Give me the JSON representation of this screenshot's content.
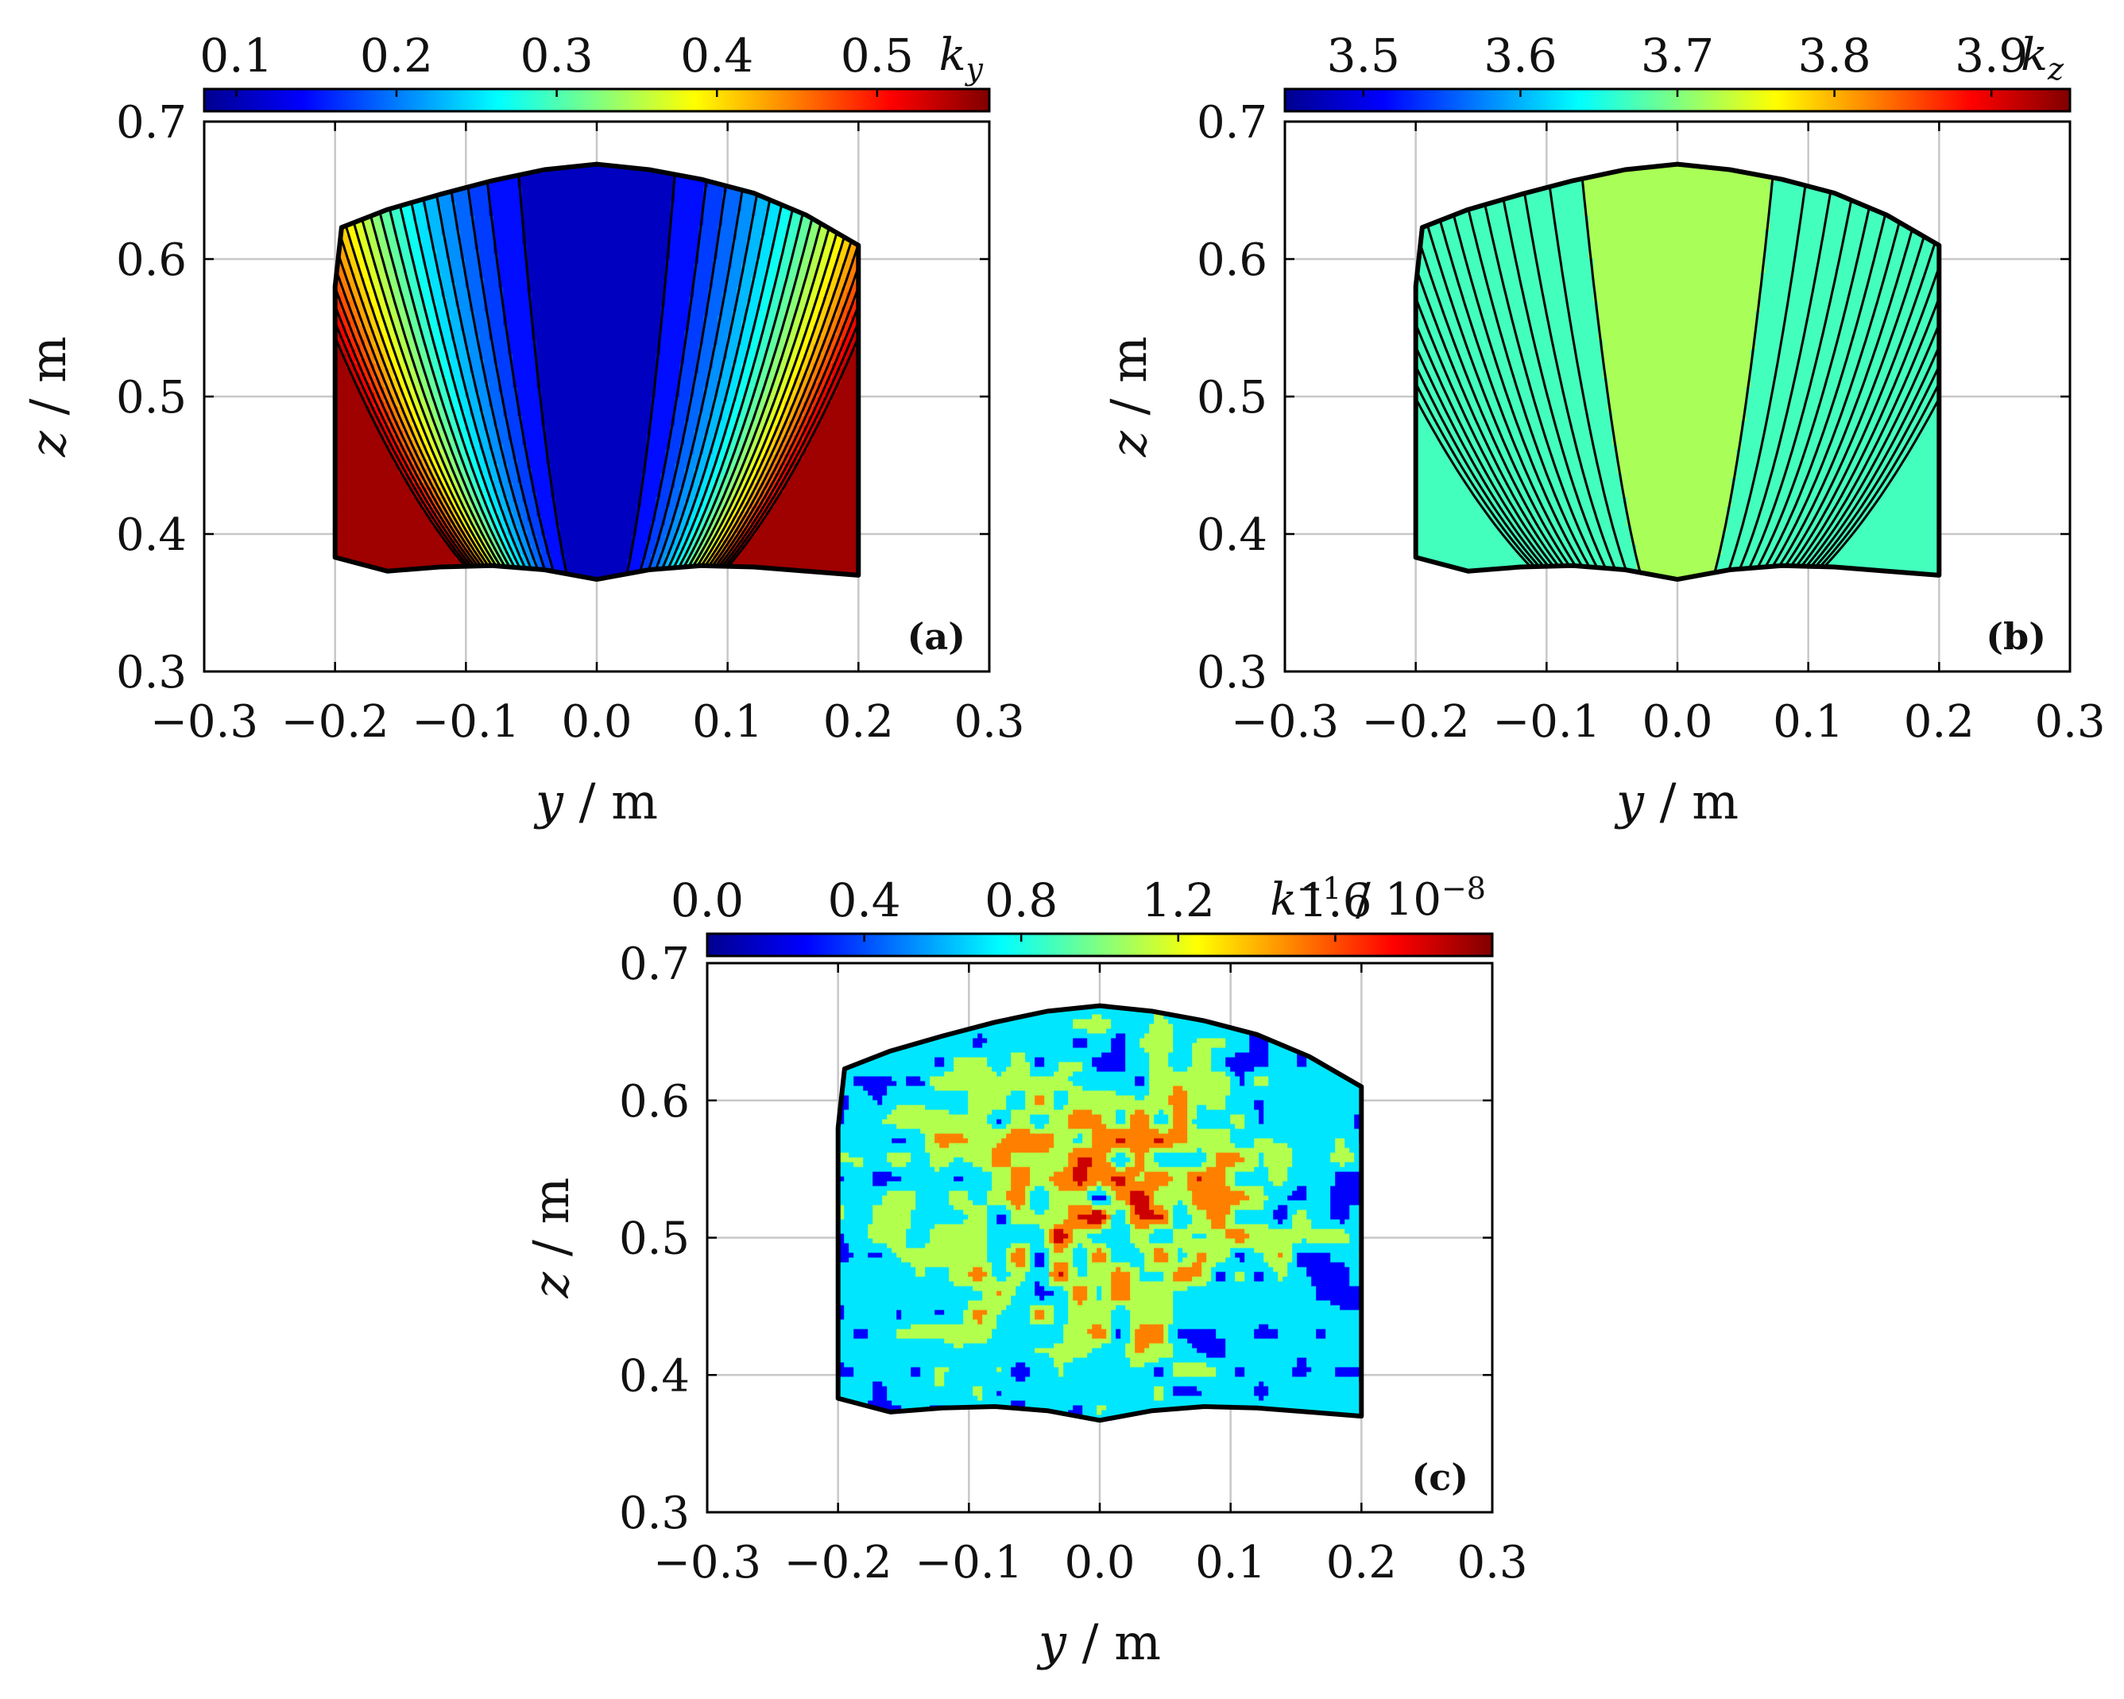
{
  "figure": {
    "colormap_stops": [
      "#00008f",
      "#0000ff",
      "#0080ff",
      "#00ffff",
      "#80ff80",
      "#ffff00",
      "#ff8000",
      "#ff0000",
      "#800000"
    ],
    "colors": {
      "axis": "#000000",
      "grid": "#c8c8c8",
      "domain_outline": "#000000"
    }
  },
  "chart_data": [
    {
      "type": "contour",
      "panel_label": "(a)",
      "xlabel_var": "y",
      "xlabel_unit": " / m",
      "ylabel_var": "z",
      "ylabel_unit": " / m",
      "xlim": [
        -0.3,
        0.3
      ],
      "ylim": [
        0.3,
        0.7
      ],
      "xticks": [
        -0.3,
        -0.2,
        -0.1,
        0.0,
        0.1,
        0.2,
        0.3
      ],
      "xtick_labels": [
        "−0.3",
        "−0.2",
        "−0.1",
        "0.0",
        "0.1",
        "0.2",
        "0.3"
      ],
      "yticks": [
        0.3,
        0.4,
        0.5,
        0.6,
        0.7
      ],
      "ytick_labels": [
        "0.3",
        "0.4",
        "0.5",
        "0.6",
        "0.7"
      ],
      "grid": true,
      "colorbar": {
        "range": [
          0.08,
          0.57
        ],
        "ticks": [
          0.1,
          0.2,
          0.3,
          0.4,
          0.5
        ],
        "tick_labels": [
          "0.1",
          "0.2",
          "0.3",
          "0.4",
          "0.5"
        ],
        "title_var": "k",
        "title_sub": "y",
        "title_sup": "",
        "title_suffix": ""
      },
      "field": {
        "kind": "parabolic",
        "base": 0.11,
        "a": 8.0,
        "b": 0.45,
        "levels": [
          0.135,
          0.16,
          0.18,
          0.2,
          0.22,
          0.24,
          0.26,
          0.28,
          0.3,
          0.32,
          0.34,
          0.36,
          0.38,
          0.4,
          0.42,
          0.44,
          0.46,
          0.48,
          0.5,
          0.52,
          0.54
        ]
      }
    },
    {
      "type": "contour",
      "panel_label": "(b)",
      "xlabel_var": "y",
      "xlabel_unit": " / m",
      "ylabel_var": "z",
      "ylabel_unit": " / m",
      "xlim": [
        -0.3,
        0.3
      ],
      "ylim": [
        0.3,
        0.7
      ],
      "xticks": [
        -0.3,
        -0.2,
        -0.1,
        0.0,
        0.1,
        0.2,
        0.3
      ],
      "xtick_labels": [
        "−0.3",
        "−0.2",
        "−0.1",
        "0.0",
        "0.1",
        "0.2",
        "0.3"
      ],
      "yticks": [
        0.3,
        0.4,
        0.5,
        0.6,
        0.7
      ],
      "ytick_labels": [
        "0.3",
        "0.4",
        "0.5",
        "0.6",
        "0.7"
      ],
      "grid": true,
      "colorbar": {
        "range": [
          3.45,
          3.95
        ],
        "ticks": [
          3.5,
          3.6,
          3.7,
          3.8,
          3.9
        ],
        "tick_labels": [
          "3.5",
          "3.6",
          "3.7",
          "3.8",
          "3.9"
        ],
        "title_var": "k",
        "title_sub": "z",
        "title_sup": "",
        "title_suffix": ""
      },
      "field": {
        "kind": "parabolic_inverse",
        "base": 3.92,
        "a": 8.0,
        "b": 0.45,
        "levels": [
          3.89,
          3.865,
          3.84,
          3.815,
          3.79,
          3.765,
          3.74,
          3.715,
          3.69,
          3.665,
          3.64,
          3.615,
          3.59,
          3.565,
          3.54,
          3.515,
          3.49
        ]
      }
    },
    {
      "type": "contour",
      "panel_label": "(c)",
      "xlabel_var": "y",
      "xlabel_unit": " / m",
      "ylabel_var": "z",
      "ylabel_unit": " / m",
      "xlim": [
        -0.3,
        0.3
      ],
      "ylim": [
        0.3,
        0.7
      ],
      "xticks": [
        -0.3,
        -0.2,
        -0.1,
        0.0,
        0.1,
        0.2,
        0.3
      ],
      "xtick_labels": [
        "−0.3",
        "−0.2",
        "−0.1",
        "0.0",
        "0.1",
        "0.2",
        "0.3"
      ],
      "yticks": [
        0.3,
        0.4,
        0.5,
        0.6,
        0.7
      ],
      "ytick_labels": [
        "0.3",
        "0.4",
        "0.5",
        "0.6",
        "0.7"
      ],
      "grid": true,
      "colorbar": {
        "range": [
          0.0,
          2.0
        ],
        "ticks": [
          0.0,
          0.4,
          0.8,
          1.2,
          1.6
        ],
        "tick_labels": [
          "0.0",
          "0.4",
          "0.8",
          "1.2",
          "1.6"
        ],
        "title_var": "k",
        "title_sub": "",
        "title_sup": "−1",
        "title_suffix": " / 10",
        "title_suffix_sup": "−8"
      },
      "field": {
        "kind": "noise",
        "levels": [
          0.5,
          0.9,
          1.3,
          1.7
        ]
      }
    }
  ],
  "domain_boundary": {
    "y": [
      -0.2,
      -0.195,
      -0.16,
      -0.12,
      -0.08,
      -0.04,
      0.0,
      0.04,
      0.08,
      0.12,
      0.16,
      0.2,
      0.2,
      0.16,
      0.12,
      0.08,
      0.04,
      0.0,
      -0.04,
      -0.08,
      -0.12,
      -0.16,
      -0.2
    ],
    "z": [
      0.58,
      0.623,
      0.636,
      0.647,
      0.657,
      0.665,
      0.669,
      0.665,
      0.658,
      0.648,
      0.632,
      0.61,
      0.37,
      0.373,
      0.376,
      0.377,
      0.374,
      0.367,
      0.374,
      0.377,
      0.376,
      0.373,
      0.383
    ]
  }
}
